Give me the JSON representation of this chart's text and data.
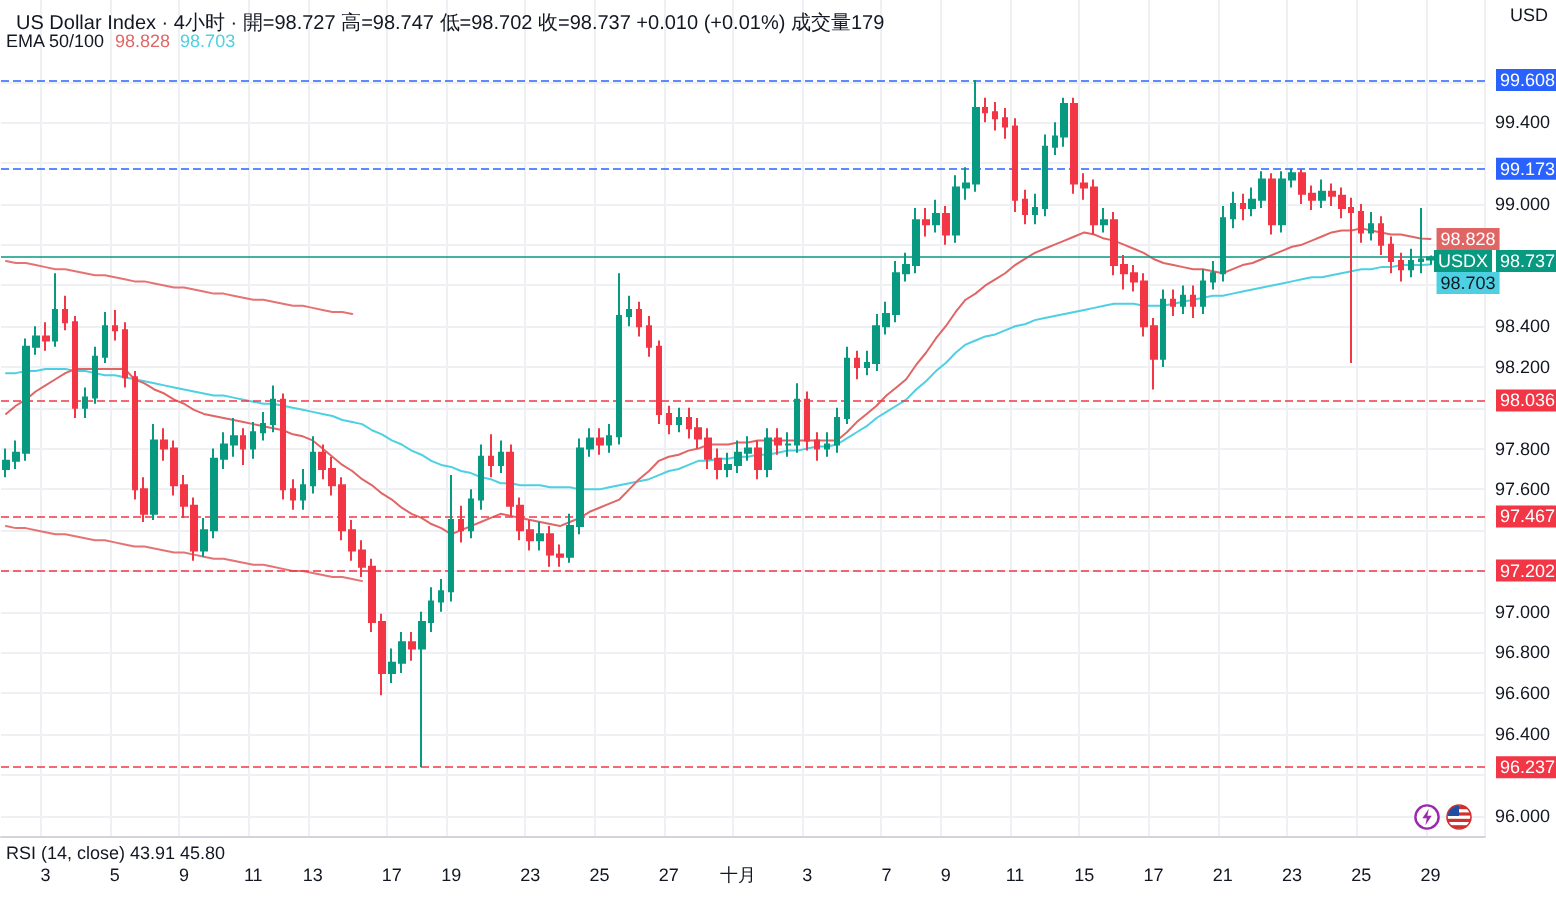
{
  "chart_data": {
    "type": "candlestick",
    "title": "US Dollar Index · 4小时 · 開=98.727 高=98.747 低=98.702 收=98.737 +0.010 (+0.01%) 成交量179",
    "subtitle": "EMA 50/100",
    "ylabel": "USD",
    "categories": [
      null,
      null,
      null,
      null,
      "3",
      null,
      null,
      null,
      null,
      null,
      null,
      "5",
      null,
      null,
      null,
      null,
      null,
      null,
      "9",
      null,
      null,
      null,
      null,
      null,
      null,
      "11",
      null,
      null,
      null,
      null,
      null,
      "13",
      null,
      null,
      null,
      null,
      null,
      null,
      null,
      "17",
      null,
      null,
      null,
      null,
      null,
      "19",
      null,
      null,
      null,
      null,
      null,
      null,
      null,
      "23",
      null,
      null,
      null,
      null,
      null,
      null,
      "25",
      null,
      null,
      null,
      null,
      null,
      null,
      "27",
      null,
      null,
      null,
      null,
      null,
      null,
      "十月",
      null,
      null,
      null,
      null,
      null,
      null,
      "3",
      null,
      null,
      null,
      null,
      null,
      null,
      null,
      "7",
      null,
      null,
      null,
      null,
      null,
      "9",
      null,
      null,
      null,
      null,
      null,
      null,
      "11",
      null,
      null,
      null,
      null,
      null,
      null,
      "15",
      null,
      null,
      null,
      null,
      null,
      null,
      "17",
      null,
      null,
      null,
      null,
      null,
      null,
      "21",
      null,
      null,
      null,
      null,
      null,
      null,
      "23",
      null,
      null,
      null,
      null,
      null,
      null,
      "25",
      null,
      null,
      null,
      null,
      null,
      null,
      "29"
    ],
    "ylim": [
      95.9,
      100.0
    ],
    "yticks": [
      {
        "value": 96,
        "label": "96.000"
      },
      {
        "value": 96.2,
        "label": null
      },
      {
        "value": 96.4,
        "label": "96.400"
      },
      {
        "value": 96.6,
        "label": "96.600"
      },
      {
        "value": 96.8,
        "label": "96.800"
      },
      {
        "value": 97,
        "label": "97.000"
      },
      {
        "value": 97.2,
        "label": null
      },
      {
        "value": 97.4,
        "label": null
      },
      {
        "value": 97.6,
        "label": "97.600"
      },
      {
        "value": 97.8,
        "label": "97.800"
      },
      {
        "value": 98,
        "label": null
      },
      {
        "value": 98.2,
        "label": "98.200"
      },
      {
        "value": 98.4,
        "label": "98.400"
      },
      {
        "value": 98.6,
        "label": null
      },
      {
        "value": 98.8,
        "label": null
      },
      {
        "value": 99,
        "label": "99.000"
      },
      {
        "value": 99.2,
        "label": null
      },
      {
        "value": 99.4,
        "label": "99.400"
      },
      {
        "value": 99.6,
        "label": null
      }
    ],
    "grid": true,
    "marker": "none",
    "ref_lines": [
      {
        "axis": "y",
        "value": 99.608,
        "label": "99.608",
        "color": "#2962ff",
        "line_style": "dashed"
      },
      {
        "axis": "y",
        "value": 99.173,
        "label": "99.173",
        "color": "#2962ff",
        "line_style": "dashed"
      },
      {
        "axis": "y",
        "value": 98.737,
        "label": "98.737",
        "color": "#089981",
        "line_style": "solid"
      },
      {
        "axis": "y",
        "value": 98.036,
        "label": "98.036",
        "color": "#f23645",
        "line_style": "dashed"
      },
      {
        "axis": "y",
        "value": 97.467,
        "label": "97.467",
        "color": "#f23645",
        "line_style": "dashed"
      },
      {
        "axis": "y",
        "value": 97.202,
        "label": "97.202",
        "color": "#f23645",
        "line_style": "dashed"
      },
      {
        "axis": "y",
        "value": 96.237,
        "label": "96.237",
        "color": "#f23645",
        "line_style": "dashed"
      }
    ],
    "annotations": [
      "RSI (14, close) 43.91 45.80",
      {
        "text": "USDX",
        "y": 98.737
      }
    ],
    "series": [
      {
        "type": "line",
        "color": "#e57373",
        "values": [
          98.72,
          98.71,
          98.71,
          98.7,
          98.69,
          98.68,
          98.68,
          98.67,
          98.66,
          98.65,
          98.65,
          98.64,
          98.63,
          98.62,
          98.62,
          98.61,
          98.6,
          98.59,
          98.59,
          98.58,
          98.57,
          98.56,
          98.56,
          98.55,
          98.54,
          98.53,
          98.53,
          98.52,
          98.51,
          98.5,
          98.5,
          98.49,
          98.48,
          98.47,
          98.47,
          98.46,
          null,
          null,
          null,
          null,
          null,
          null,
          null,
          null,
          null,
          null,
          null,
          null,
          null,
          null,
          null,
          null,
          null,
          null,
          null,
          null,
          null,
          null,
          null,
          null,
          null,
          null,
          null,
          null,
          null,
          null,
          null,
          null,
          null,
          null,
          null,
          null,
          null,
          null,
          null,
          null,
          null,
          null,
          null,
          null,
          null,
          null,
          null,
          null,
          null,
          null,
          null,
          null,
          null,
          null,
          null,
          null,
          null,
          null,
          null,
          null,
          null,
          null,
          null,
          null,
          null,
          null,
          null,
          null,
          null,
          null,
          null,
          null,
          null,
          null,
          null,
          null,
          null,
          null,
          null,
          null,
          null,
          null,
          null,
          null,
          null,
          null,
          null,
          null,
          null,
          null,
          null,
          null,
          null,
          null,
          null,
          null,
          null,
          null,
          null,
          null,
          null,
          null,
          null,
          null,
          null,
          null,
          null,
          null,
          null
        ]
      },
      {
        "type": "line",
        "color": "#e57373",
        "values": [
          97.42,
          97.41,
          97.41,
          97.4,
          97.39,
          97.38,
          97.38,
          97.37,
          97.36,
          97.35,
          97.35,
          97.34,
          97.33,
          97.32,
          97.32,
          97.31,
          97.3,
          97.29,
          97.29,
          97.28,
          97.27,
          97.26,
          97.26,
          97.25,
          97.24,
          97.23,
          97.23,
          97.22,
          97.21,
          97.2,
          97.2,
          97.19,
          97.18,
          97.17,
          97.17,
          97.16,
          97.15,
          null,
          null,
          null,
          null,
          null,
          null,
          null,
          null,
          null,
          null,
          null,
          null,
          null,
          null,
          null,
          null,
          null,
          null,
          null,
          null,
          null,
          null,
          null,
          null,
          null,
          null,
          null,
          null,
          null,
          null,
          null,
          null,
          null,
          null,
          null,
          null,
          null,
          null,
          null,
          null,
          null,
          null,
          null,
          null,
          null,
          null,
          null,
          null,
          null,
          null,
          null,
          null,
          null,
          null,
          null,
          null,
          null,
          null,
          null,
          null,
          null,
          null,
          null,
          null,
          null,
          null,
          null,
          null,
          null,
          null,
          null,
          null,
          null,
          null,
          null,
          null,
          null,
          null,
          null,
          null,
          null,
          null,
          null,
          null,
          null,
          null,
          null,
          null,
          null,
          null,
          null,
          null,
          null,
          null,
          null,
          null,
          null,
          null,
          null,
          null,
          null,
          null,
          null,
          null,
          null,
          null,
          null,
          null
        ]
      },
      {
        "type": "line",
        "color": "#4dd0e1",
        "values": [
          98.17,
          98.17,
          98.18,
          98.18,
          98.19,
          98.19,
          98.19,
          98.18,
          98.18,
          98.17,
          98.16,
          98.16,
          98.15,
          98.14,
          98.13,
          98.12,
          98.11,
          98.1,
          98.09,
          98.08,
          98.07,
          98.06,
          98.06,
          98.05,
          98.04,
          98.03,
          98.02,
          98.02,
          98.01,
          98.0,
          97.99,
          97.98,
          97.97,
          97.96,
          97.94,
          97.93,
          97.92,
          97.89,
          97.87,
          97.84,
          97.82,
          97.79,
          97.77,
          97.74,
          97.72,
          97.71,
          97.69,
          97.68,
          97.66,
          97.65,
          97.63,
          97.63,
          97.62,
          97.62,
          97.62,
          97.61,
          97.61,
          97.61,
          97.6,
          97.6,
          97.6,
          97.61,
          97.62,
          97.63,
          97.64,
          97.65,
          97.67,
          97.69,
          97.7,
          97.72,
          97.74,
          97.74,
          97.75,
          97.75,
          97.76,
          97.76,
          97.77,
          97.77,
          97.78,
          97.79,
          97.79,
          97.8,
          97.81,
          97.81,
          97.82,
          97.85,
          97.88,
          97.91,
          97.95,
          97.98,
          98.01,
          98.04,
          98.09,
          98.13,
          98.18,
          98.22,
          98.27,
          98.31,
          98.33,
          98.35,
          98.36,
          98.38,
          98.4,
          98.41,
          98.43,
          98.44,
          98.45,
          98.46,
          98.47,
          98.48,
          98.49,
          98.5,
          98.51,
          98.51,
          98.51,
          98.5,
          98.5,
          98.5,
          98.51,
          98.52,
          98.53,
          98.54,
          98.55,
          98.55,
          98.56,
          98.57,
          98.58,
          98.59,
          98.6,
          98.61,
          98.62,
          98.63,
          98.64,
          98.64,
          98.65,
          98.66,
          98.67,
          98.68,
          98.68,
          98.69,
          98.69,
          98.7,
          98.7,
          98.7,
          98.703
        ],
        "value_labels": [
          null,
          null,
          null,
          null,
          null,
          null,
          null,
          null,
          null,
          null,
          null,
          null,
          null,
          null,
          null,
          null,
          null,
          null,
          null,
          null,
          null,
          null,
          null,
          null,
          null,
          null,
          null,
          null,
          null,
          null,
          null,
          null,
          null,
          null,
          null,
          null,
          null,
          null,
          null,
          null,
          null,
          null,
          null,
          null,
          null,
          null,
          null,
          null,
          null,
          null,
          null,
          null,
          null,
          null,
          null,
          null,
          null,
          null,
          null,
          null,
          null,
          null,
          null,
          null,
          null,
          null,
          null,
          null,
          null,
          null,
          null,
          null,
          null,
          null,
          null,
          null,
          null,
          null,
          null,
          null,
          null,
          null,
          null,
          null,
          null,
          null,
          null,
          null,
          null,
          null,
          null,
          null,
          null,
          null,
          null,
          null,
          null,
          null,
          null,
          null,
          null,
          null,
          null,
          null,
          null,
          null,
          null,
          null,
          null,
          null,
          null,
          null,
          null,
          null,
          null,
          null,
          null,
          null,
          null,
          null,
          null,
          null,
          null,
          null,
          null,
          null,
          null,
          null,
          null,
          null,
          null,
          null,
          null,
          null,
          null,
          null,
          null,
          null,
          null,
          null,
          null,
          null,
          null,
          null,
          "98.703"
        ]
      },
      {
        "type": "line",
        "color": "#e06666",
        "values": [
          97.97,
          98.01,
          98.04,
          98.08,
          98.11,
          98.14,
          98.17,
          98.19,
          98.19,
          98.19,
          98.19,
          98.19,
          98.19,
          98.14,
          98.12,
          98.09,
          98.07,
          98.04,
          98.02,
          97.99,
          97.97,
          97.96,
          97.95,
          97.94,
          97.93,
          97.92,
          97.91,
          97.9,
          97.89,
          97.87,
          97.86,
          97.84,
          97.8,
          97.76,
          97.72,
          97.69,
          97.65,
          97.62,
          97.58,
          97.55,
          97.51,
          97.48,
          97.46,
          97.43,
          97.41,
          97.38,
          97.4,
          97.42,
          97.44,
          97.46,
          97.48,
          97.47,
          97.46,
          97.45,
          97.44,
          97.43,
          97.42,
          97.44,
          97.46,
          97.49,
          97.51,
          97.53,
          97.55,
          97.6,
          97.65,
          97.69,
          97.74,
          97.76,
          97.77,
          97.79,
          97.8,
          97.82,
          97.82,
          97.82,
          97.83,
          97.83,
          97.84,
          97.84,
          97.84,
          97.84,
          97.84,
          97.84,
          97.84,
          97.84,
          97.84,
          97.88,
          97.93,
          97.97,
          98.01,
          98.06,
          98.1,
          98.14,
          98.21,
          98.27,
          98.34,
          98.4,
          98.47,
          98.53,
          98.56,
          98.6,
          98.63,
          98.66,
          98.7,
          98.73,
          98.76,
          98.78,
          98.8,
          98.82,
          98.84,
          98.86,
          98.85,
          98.83,
          98.82,
          98.8,
          98.78,
          98.76,
          98.73,
          98.71,
          98.7,
          98.69,
          98.68,
          98.68,
          98.67,
          98.66,
          98.68,
          98.7,
          98.71,
          98.73,
          98.75,
          98.77,
          98.79,
          98.8,
          98.82,
          98.84,
          98.86,
          98.87,
          98.87,
          98.88,
          98.87,
          98.86,
          98.85,
          98.85,
          98.84,
          98.83,
          98.828
        ],
        "value_labels": [
          null,
          null,
          null,
          null,
          null,
          null,
          null,
          null,
          null,
          null,
          null,
          null,
          null,
          null,
          null,
          null,
          null,
          null,
          null,
          null,
          null,
          null,
          null,
          null,
          null,
          null,
          null,
          null,
          null,
          null,
          null,
          null,
          null,
          null,
          null,
          null,
          null,
          null,
          null,
          null,
          null,
          null,
          null,
          null,
          null,
          null,
          null,
          null,
          null,
          null,
          null,
          null,
          null,
          null,
          null,
          null,
          null,
          null,
          null,
          null,
          null,
          null,
          null,
          null,
          null,
          null,
          null,
          null,
          null,
          null,
          null,
          null,
          null,
          null,
          null,
          null,
          null,
          null,
          null,
          null,
          null,
          null,
          null,
          null,
          null,
          null,
          null,
          null,
          null,
          null,
          null,
          null,
          null,
          null,
          null,
          null,
          null,
          null,
          null,
          null,
          null,
          null,
          null,
          null,
          null,
          null,
          null,
          null,
          null,
          null,
          null,
          null,
          null,
          null,
          null,
          null,
          null,
          null,
          null,
          null,
          null,
          null,
          null,
          null,
          null,
          null,
          null,
          null,
          null,
          null,
          null,
          null,
          null,
          null,
          null,
          null,
          null,
          null,
          null,
          null,
          null,
          null,
          null,
          null,
          "98.828"
        ]
      },
      {
        "ohlc": [
          [
            97.7,
            97.8,
            97.66,
            97.74
          ],
          [
            97.74,
            97.84,
            97.7,
            97.78
          ],
          [
            97.78,
            98.34,
            97.74,
            98.3
          ],
          [
            98.3,
            98.4,
            98.26,
            98.35
          ],
          [
            98.35,
            98.42,
            98.28,
            98.33
          ],
          [
            98.33,
            98.66,
            98.3,
            98.48
          ],
          [
            98.48,
            98.55,
            98.38,
            98.42
          ],
          [
            98.42,
            98.45,
            97.95,
            98.0
          ],
          [
            98.0,
            98.1,
            97.95,
            98.05
          ],
          [
            98.05,
            98.3,
            98.02,
            98.25
          ],
          [
            98.25,
            98.47,
            98.22,
            98.4
          ],
          [
            98.4,
            98.48,
            98.33,
            98.38
          ],
          [
            98.38,
            98.42,
            98.1,
            98.15
          ],
          [
            98.15,
            98.18,
            97.55,
            97.6
          ],
          [
            97.6,
            97.66,
            97.44,
            97.48
          ],
          [
            97.48,
            97.92,
            97.45,
            97.84
          ],
          [
            97.84,
            97.9,
            97.74,
            97.8
          ],
          [
            97.8,
            97.84,
            97.57,
            97.62
          ],
          [
            97.62,
            97.67,
            97.46,
            97.52
          ],
          [
            97.52,
            97.56,
            97.25,
            97.3
          ],
          [
            97.3,
            97.46,
            97.27,
            97.4
          ],
          [
            97.4,
            97.8,
            97.36,
            97.75
          ],
          [
            97.75,
            97.88,
            97.7,
            97.82
          ],
          [
            97.82,
            97.95,
            97.76,
            97.86
          ],
          [
            97.86,
            97.9,
            97.72,
            97.8
          ],
          [
            97.8,
            97.93,
            97.75,
            97.88
          ],
          [
            97.88,
            97.98,
            97.84,
            97.92
          ],
          [
            97.92,
            98.11,
            97.88,
            98.04
          ],
          [
            98.04,
            98.07,
            97.55,
            97.6
          ],
          [
            97.6,
            97.65,
            97.5,
            97.55
          ],
          [
            97.55,
            97.7,
            97.5,
            97.62
          ],
          [
            97.62,
            97.86,
            97.58,
            97.78
          ],
          [
            97.78,
            97.82,
            97.65,
            97.7
          ],
          [
            97.7,
            97.76,
            97.57,
            97.62
          ],
          [
            97.62,
            97.66,
            97.35,
            97.4
          ],
          [
            97.4,
            97.45,
            97.25,
            97.3
          ],
          [
            97.3,
            97.35,
            97.17,
            97.22
          ],
          [
            97.22,
            97.26,
            96.9,
            96.95
          ],
          [
            96.95,
            96.99,
            96.59,
            96.7
          ],
          [
            96.7,
            96.82,
            96.65,
            96.75
          ],
          [
            96.75,
            96.9,
            96.7,
            96.85
          ],
          [
            96.85,
            96.9,
            96.76,
            96.82
          ],
          [
            96.82,
            97.0,
            96.237,
            96.95
          ],
          [
            96.95,
            97.12,
            96.9,
            97.05
          ],
          [
            97.05,
            97.16,
            97.0,
            97.1
          ],
          [
            97.1,
            97.67,
            97.05,
            97.45
          ],
          [
            97.45,
            97.52,
            97.34,
            97.4
          ],
          [
            97.4,
            97.6,
            97.36,
            97.55
          ],
          [
            97.55,
            97.82,
            97.5,
            97.76
          ],
          [
            97.76,
            97.87,
            97.66,
            97.72
          ],
          [
            97.72,
            97.84,
            97.68,
            97.78
          ],
          [
            97.78,
            97.82,
            97.47,
            97.52
          ],
          [
            97.52,
            97.56,
            97.35,
            97.4
          ],
          [
            97.4,
            97.45,
            97.3,
            97.35
          ],
          [
            97.35,
            97.44,
            97.3,
            97.38
          ],
          [
            97.38,
            97.42,
            97.22,
            97.28
          ],
          [
            97.28,
            97.33,
            97.22,
            97.27
          ],
          [
            97.27,
            97.48,
            97.24,
            97.42
          ],
          [
            97.42,
            97.85,
            97.38,
            97.8
          ],
          [
            97.8,
            97.9,
            97.76,
            97.85
          ],
          [
            97.85,
            97.9,
            97.77,
            97.82
          ],
          [
            97.82,
            97.92,
            97.78,
            97.86
          ],
          [
            97.86,
            98.66,
            97.82,
            98.45
          ],
          [
            98.45,
            98.55,
            98.4,
            98.48
          ],
          [
            98.48,
            98.52,
            98.35,
            98.4
          ],
          [
            98.4,
            98.45,
            98.25,
            98.3
          ],
          [
            98.3,
            98.33,
            97.92,
            97.97
          ],
          [
            97.97,
            98.01,
            97.87,
            97.92
          ],
          [
            97.92,
            98.0,
            97.88,
            97.95
          ],
          [
            97.95,
            98.0,
            97.85,
            97.9
          ],
          [
            97.9,
            97.95,
            97.8,
            97.85
          ],
          [
            97.85,
            97.9,
            97.7,
            97.75
          ],
          [
            97.75,
            97.8,
            97.65,
            97.7
          ],
          [
            97.7,
            97.78,
            97.66,
            97.72
          ],
          [
            97.72,
            97.84,
            97.68,
            97.78
          ],
          [
            97.78,
            97.86,
            97.74,
            97.8
          ],
          [
            97.8,
            97.84,
            97.65,
            97.7
          ],
          [
            97.7,
            97.9,
            97.66,
            97.85
          ],
          [
            97.85,
            97.9,
            97.77,
            97.82
          ],
          [
            97.82,
            97.88,
            97.76,
            97.82
          ],
          [
            97.82,
            98.12,
            97.78,
            98.04
          ],
          [
            98.04,
            98.08,
            97.79,
            97.84
          ],
          [
            97.84,
            97.88,
            97.74,
            97.8
          ],
          [
            97.8,
            97.88,
            97.76,
            97.82
          ],
          [
            97.82,
            98.0,
            97.78,
            97.95
          ],
          [
            97.95,
            98.3,
            97.92,
            98.24
          ],
          [
            98.24,
            98.28,
            98.14,
            98.2
          ],
          [
            98.2,
            98.28,
            98.16,
            98.22
          ],
          [
            98.22,
            98.46,
            98.18,
            98.4
          ],
          [
            98.4,
            98.52,
            98.36,
            98.46
          ],
          [
            98.46,
            98.72,
            98.42,
            98.66
          ],
          [
            98.66,
            98.76,
            98.62,
            98.7
          ],
          [
            98.7,
            98.98,
            98.66,
            98.92
          ],
          [
            98.92,
            98.98,
            98.84,
            98.9
          ],
          [
            98.9,
            99.02,
            98.86,
            98.95
          ],
          [
            98.95,
            98.99,
            98.8,
            98.85
          ],
          [
            98.85,
            99.14,
            98.81,
            99.08
          ],
          [
            99.08,
            99.18,
            99.02,
            99.1
          ],
          [
            99.1,
            99.608,
            99.06,
            99.47
          ],
          [
            99.47,
            99.52,
            99.4,
            99.45
          ],
          [
            99.45,
            99.5,
            99.36,
            99.42
          ],
          [
            99.42,
            99.47,
            99.32,
            99.38
          ],
          [
            99.38,
            99.42,
            98.96,
            99.02
          ],
          [
            99.02,
            99.07,
            98.9,
            98.95
          ],
          [
            98.95,
            99.05,
            98.9,
            98.98
          ],
          [
            98.98,
            99.34,
            98.94,
            99.28
          ],
          [
            99.28,
            99.4,
            99.24,
            99.33
          ],
          [
            99.33,
            99.52,
            99.28,
            99.49
          ],
          [
            99.49,
            99.52,
            99.05,
            99.1
          ],
          [
            99.1,
            99.15,
            99.02,
            99.08
          ],
          [
            99.08,
            99.12,
            98.85,
            98.9
          ],
          [
            98.9,
            98.98,
            98.86,
            98.92
          ],
          [
            98.92,
            98.96,
            98.65,
            98.7
          ],
          [
            98.7,
            98.75,
            98.58,
            98.66
          ],
          [
            98.66,
            98.7,
            98.57,
            98.62
          ],
          [
            98.62,
            98.66,
            98.35,
            98.4
          ],
          [
            98.4,
            98.44,
            98.09,
            98.24
          ],
          [
            98.24,
            98.58,
            98.2,
            98.53
          ],
          [
            98.53,
            98.58,
            98.45,
            98.5
          ],
          [
            98.5,
            98.6,
            98.46,
            98.55
          ],
          [
            98.55,
            98.6,
            98.44,
            98.5
          ],
          [
            98.5,
            98.68,
            98.46,
            98.62
          ],
          [
            98.62,
            98.72,
            98.58,
            98.66
          ],
          [
            98.66,
            98.99,
            98.62,
            98.93
          ],
          [
            98.93,
            99.06,
            98.88,
            99.0
          ],
          [
            99.0,
            99.05,
            98.92,
            98.98
          ],
          [
            98.98,
            99.08,
            98.94,
            99.02
          ],
          [
            99.02,
            99.16,
            98.98,
            99.12
          ],
          [
            99.12,
            99.15,
            98.85,
            98.9
          ],
          [
            98.9,
            99.16,
            98.86,
            99.12
          ],
          [
            99.12,
            99.173,
            99.08,
            99.15
          ],
          [
            99.15,
            99.17,
            99.0,
            99.05
          ],
          [
            99.05,
            99.09,
            98.97,
            99.02
          ],
          [
            99.02,
            99.12,
            98.98,
            99.06
          ],
          [
            99.06,
            99.1,
            98.99,
            99.04
          ],
          [
            99.04,
            99.08,
            98.93,
            98.98
          ],
          [
            98.98,
            99.03,
            98.22,
            98.96
          ],
          [
            98.96,
            99.0,
            98.81,
            98.86
          ],
          [
            98.86,
            98.96,
            98.82,
            98.9
          ],
          [
            98.9,
            98.94,
            98.75,
            98.8
          ],
          [
            98.8,
            98.84,
            98.66,
            98.72
          ],
          [
            98.72,
            98.76,
            98.62,
            98.68
          ],
          [
            98.68,
            98.78,
            98.64,
            98.72
          ],
          [
            98.72,
            98.98,
            98.66,
            98.727
          ],
          [
            98.727,
            98.747,
            98.702,
            98.737
          ]
        ],
        "colors": [
          "#089981",
          "#089981",
          "#089981",
          "#089981",
          "#f23645",
          "#089981",
          "#f23645",
          "#f23645",
          "#089981",
          "#089981",
          "#089981",
          "#f23645",
          "#f23645",
          "#f23645",
          "#f23645",
          "#089981",
          "#f23645",
          "#f23645",
          "#f23645",
          "#f23645",
          "#089981",
          "#089981",
          "#089981",
          "#089981",
          "#f23645",
          "#089981",
          "#089981",
          "#089981",
          "#f23645",
          "#f23645",
          "#089981",
          "#089981",
          "#f23645",
          "#f23645",
          "#f23645",
          "#f23645",
          "#f23645",
          "#f23645",
          "#f23645",
          "#089981",
          "#089981",
          "#f23645",
          "#089981",
          "#089981",
          "#089981",
          "#089981",
          "#f23645",
          "#089981",
          "#089981",
          "#f23645",
          "#089981",
          "#f23645",
          "#f23645",
          "#f23645",
          "#089981",
          "#f23645",
          "#f23645",
          "#089981",
          "#089981",
          "#089981",
          "#f23645",
          "#089981",
          "#089981",
          "#089981",
          "#f23645",
          "#f23645",
          "#f23645",
          "#f23645",
          "#089981",
          "#f23645",
          "#f23645",
          "#f23645",
          "#f23645",
          "#089981",
          "#089981",
          "#089981",
          "#f23645",
          "#089981",
          "#f23645",
          "#089981",
          "#089981",
          "#f23645",
          "#f23645",
          "#089981",
          "#089981",
          "#089981",
          "#f23645",
          "#089981",
          "#089981",
          "#089981",
          "#089981",
          "#089981",
          "#089981",
          "#f23645",
          "#089981",
          "#f23645",
          "#089981",
          "#089981",
          "#089981",
          "#f23645",
          "#f23645",
          "#f23645",
          "#f23645",
          "#f23645",
          "#089981",
          "#089981",
          "#089981",
          "#089981",
          "#f23645",
          "#f23645",
          "#f23645",
          "#089981",
          "#f23645",
          "#f23645",
          "#f23645",
          "#f23645",
          "#f23645",
          "#089981",
          "#f23645",
          "#089981",
          "#f23645",
          "#089981",
          "#089981",
          "#089981",
          "#089981",
          "#f23645",
          "#089981",
          "#089981",
          "#f23645",
          "#089981",
          "#089981",
          "#f23645",
          "#f23645",
          "#089981",
          "#f23645",
          "#f23645",
          "#f23645",
          "#f23645",
          "#089981",
          "#f23645",
          "#f23645",
          "#f23645",
          "#089981",
          "#089981",
          "#089981"
        ]
      }
    ]
  }
}
